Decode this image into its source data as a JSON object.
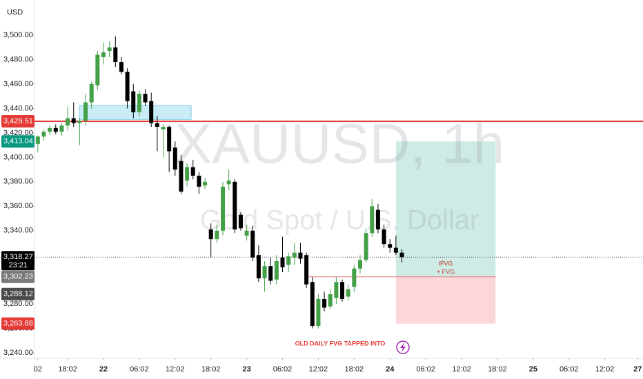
{
  "chart_data": {
    "type": "candlestick",
    "currency": "USD",
    "watermark_symbol": "XAUUSD, 1h",
    "watermark_name": "Gold Spot / U.S. Dollar",
    "up_color": "#43a047",
    "down_color": "#000000",
    "x": [
      -11,
      -10,
      -9,
      -8,
      -7,
      -6,
      -5,
      -4,
      -3,
      -2,
      -1,
      0,
      1,
      2,
      3,
      4,
      5,
      6,
      7,
      8,
      9,
      10,
      11,
      12,
      13,
      14,
      15,
      16,
      17,
      18,
      19,
      20,
      21,
      22,
      23,
      24,
      25,
      26,
      27,
      28,
      29,
      30,
      31,
      32,
      33,
      34,
      35,
      36,
      37,
      38,
      39,
      40,
      41,
      42,
      43,
      44,
      45,
      46,
      47,
      48,
      49,
      50
    ],
    "open": [
      3411,
      3417,
      3421,
      3424,
      3421,
      3426,
      3432,
      3428,
      3430,
      3445,
      3459,
      3482,
      3487,
      3490,
      3478,
      3470,
      3454,
      3437,
      3452,
      3446,
      3428,
      3423,
      3425,
      3408,
      3397,
      3381,
      3392,
      3385,
      3377,
      3341,
      3333,
      3340,
      3378,
      3380,
      3353,
      3336,
      3340,
      3320,
      3301,
      3311,
      3300,
      3318,
      3312,
      3318,
      3322,
      3320,
      3298,
      3262,
      3284,
      3278,
      3285,
      3298,
      3286,
      3294,
      3309,
      3316,
      3338,
      3357,
      3341,
      3329,
      3326,
      3322
    ],
    "high": [
      3418,
      3423,
      3426,
      3427,
      3428,
      3441,
      3445,
      3432,
      3452,
      3462,
      3487,
      3494,
      3495,
      3499,
      3482,
      3473,
      3460,
      3455,
      3456,
      3453,
      3434,
      3427,
      3426,
      3413,
      3402,
      3395,
      3398,
      3388,
      3383,
      3346,
      3345,
      3380,
      3390,
      3382,
      3355,
      3345,
      3344,
      3328,
      3315,
      3318,
      3320,
      3335,
      3322,
      3330,
      3330,
      3322,
      3302,
      3288,
      3290,
      3292,
      3302,
      3300,
      3296,
      3312,
      3320,
      3342,
      3366,
      3362,
      3345,
      3333,
      3336,
      3325
    ],
    "low": [
      3404,
      3414,
      3418,
      3419,
      3418,
      3422,
      3425,
      3410,
      3426,
      3440,
      3455,
      3476,
      3482,
      3474,
      3468,
      3440,
      3432,
      3434,
      3442,
      3425,
      3405,
      3400,
      3388,
      3385,
      3370,
      3376,
      3382,
      3370,
      3374,
      3318,
      3330,
      3336,
      3373,
      3338,
      3340,
      3332,
      3315,
      3298,
      3290,
      3296,
      3296,
      3306,
      3306,
      3312,
      3313,
      3293,
      3260,
      3260,
      3274,
      3276,
      3280,
      3282,
      3283,
      3290,
      3305,
      3314,
      3335,
      3338,
      3326,
      3322,
      3320,
      3314
    ],
    "close": [
      3417,
      3421,
      3424,
      3421,
      3426,
      3432,
      3428,
      3430,
      3445,
      3460,
      3484,
      3486,
      3490,
      3478,
      3470,
      3446,
      3437,
      3452,
      3445,
      3428,
      3425,
      3425,
      3405,
      3390,
      3372,
      3392,
      3385,
      3376,
      3380,
      3333,
      3340,
      3376,
      3381,
      3341,
      3342,
      3340,
      3318,
      3301,
      3311,
      3299,
      3315,
      3310,
      3319,
      3322,
      3317,
      3296,
      3262,
      3284,
      3277,
      3288,
      3298,
      3284,
      3292,
      3309,
      3316,
      3338,
      3360,
      3341,
      3329,
      3326,
      3322,
      3318.27
    ],
    "xlim": [
      -11.56,
      90.4
    ],
    "ylim": [
      3235.5,
      3528.8
    ],
    "yticks": [
      {
        "value": 3240,
        "label": "3,240.00"
      },
      {
        "value": 3260,
        "label": "3,260.00"
      },
      {
        "value": 3280,
        "label": "3,280.00"
      },
      {
        "value": 3300,
        "label": "3,300.00"
      },
      {
        "value": 3320,
        "label": "3,320.00"
      },
      {
        "value": 3340,
        "label": "3,340.00"
      },
      {
        "value": 3360,
        "label": "3,360.00"
      },
      {
        "value": 3380,
        "label": "3,380.00"
      },
      {
        "value": 3400,
        "label": "3,400.00"
      },
      {
        "value": 3420,
        "label": "3,420.00"
      },
      {
        "value": 3440,
        "label": "3,440.00"
      },
      {
        "value": 3460,
        "label": "3,460.00"
      },
      {
        "value": 3480,
        "label": "3,480.00"
      },
      {
        "value": 3500,
        "label": "3,500.00"
      }
    ],
    "xticks": [
      {
        "value": -11,
        "label": "02"
      },
      {
        "value": -6,
        "label": "18:02"
      },
      {
        "value": 0,
        "label": "22"
      },
      {
        "value": 6,
        "label": "06:02"
      },
      {
        "value": 12,
        "label": "12:02"
      },
      {
        "value": 18,
        "label": "18:02"
      },
      {
        "value": 24,
        "label": "23"
      },
      {
        "value": 30,
        "label": "06:02"
      },
      {
        "value": 36,
        "label": "12:02"
      },
      {
        "value": 42,
        "label": "18:02"
      },
      {
        "value": 48,
        "label": "24"
      },
      {
        "value": 54,
        "label": "06:02"
      },
      {
        "value": 60,
        "label": "12:02"
      },
      {
        "value": 66,
        "label": "18:02"
      },
      {
        "value": 72,
        "label": "25"
      },
      {
        "value": 78,
        "label": "06:02"
      },
      {
        "value": 84,
        "label": "12:02"
      },
      {
        "value": 89.5,
        "label": "27"
      }
    ],
    "resistance_line": {
      "value": 3429.51,
      "color": "#e53935"
    },
    "current_price": {
      "value": 3318.27,
      "label": "3,318.27",
      "countdown": "23:21"
    },
    "price_badges": [
      {
        "value": 3429.51,
        "label": "3,429.51",
        "color": "#e53935"
      },
      {
        "value": 3413.04,
        "label": "3,413.04",
        "color": "#089981"
      },
      {
        "value": 3302.23,
        "label": "3,302.23",
        "color": "#7a7a7a"
      },
      {
        "value": 3288.12,
        "label": "3,288.12",
        "color": "#4a4a4a"
      },
      {
        "value": 3263.88,
        "label": "3,263.88",
        "color": "#e53935"
      }
    ],
    "zones": [
      {
        "x": [
          -4.05,
          14.7
        ],
        "y": [
          3431,
          3442.5
        ],
        "color": "rgba(100,200,230,0.35)"
      },
      {
        "x": [
          49,
          65.7
        ],
        "y": [
          3302.23,
          3413.04
        ],
        "color": "rgba(8,153,129,0.2)"
      },
      {
        "x": [
          49,
          65.7
        ],
        "y": [
          3263.88,
          3302.23
        ],
        "color": "rgba(242,54,69,0.2)"
      }
    ],
    "entry_line": {
      "x": [
        34.3,
        65.7
      ],
      "value": 3302.23,
      "color": "#e57373"
    },
    "annotations": [
      "IFVG",
      "+ FVG",
      "OLD DAILY FVG TAPPED INTO"
    ]
  }
}
